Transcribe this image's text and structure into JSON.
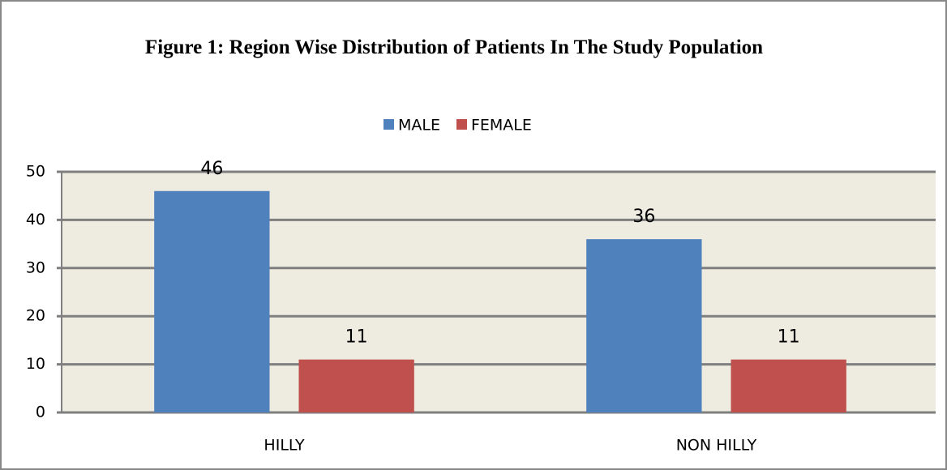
{
  "chart_data": {
    "type": "bar",
    "title": "Figure 1: Region Wise Distribution of Patients In The Study Population",
    "categories": [
      "HILLY",
      "NON HILLY"
    ],
    "series": [
      {
        "name": "MALE",
        "color": "#4f81bd",
        "values": [
          46,
          36
        ]
      },
      {
        "name": "FEMALE",
        "color": "#c0504d",
        "values": [
          11,
          11
        ]
      }
    ],
    "ylim": [
      0,
      50
    ],
    "yticks": [
      0,
      10,
      20,
      30,
      40,
      50
    ],
    "grid": true,
    "legend": "top"
  }
}
